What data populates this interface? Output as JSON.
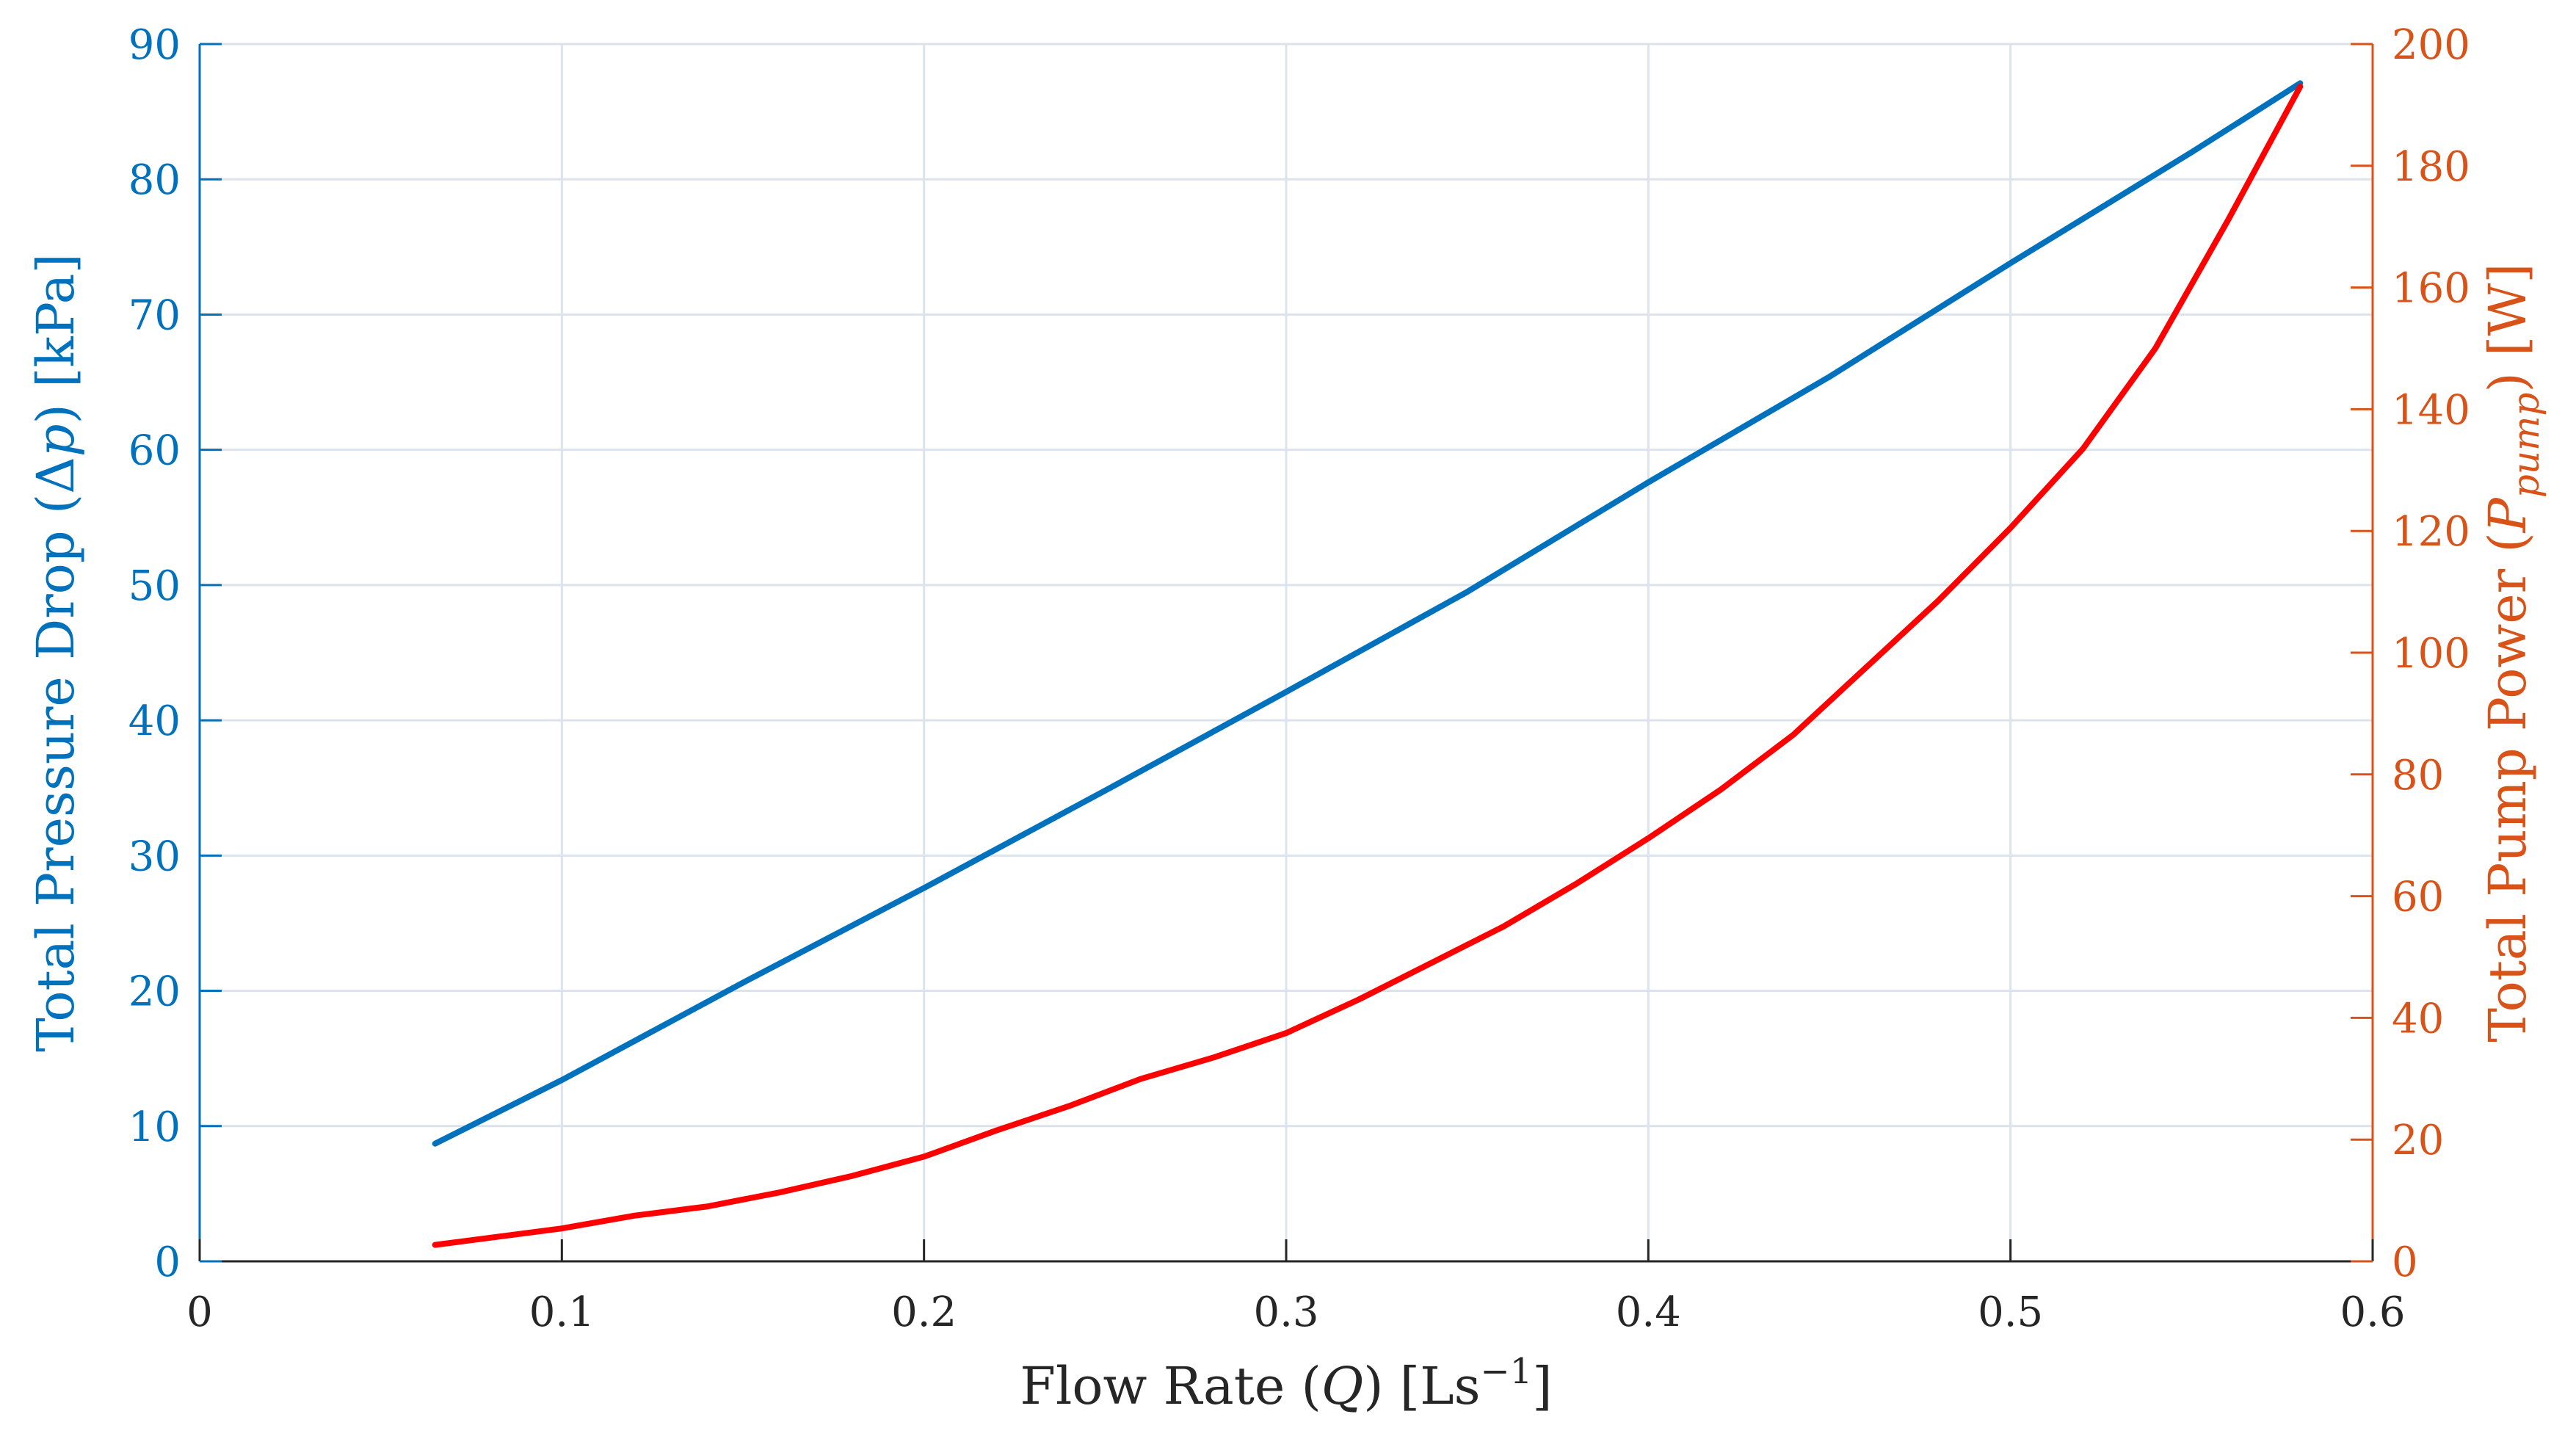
{
  "chart_data": {
    "type": "line",
    "title": "",
    "colors": {
      "left_axis": "#0072BD",
      "right_axis": "#D95319",
      "pressure_line": "#0072BD",
      "power_line": "#FF0000",
      "grid": "#DCE3EC",
      "x_axis": "#262626"
    },
    "x_axis": {
      "label_parts": [
        "Flow Rate (",
        "Q",
        ") [Ls",
        "−1",
        "]"
      ],
      "range": [
        0,
        0.6
      ],
      "ticks": [
        0,
        0.1,
        0.2,
        0.3,
        0.4,
        0.5,
        0.6
      ],
      "tick_labels": [
        "0",
        "0.1",
        "0.2",
        "0.3",
        "0.4",
        "0.5",
        "0.6"
      ]
    },
    "y_left": {
      "label_parts": [
        "Total Pressure Drop (Δ",
        "p",
        ") [kPa]"
      ],
      "range": [
        0,
        90
      ],
      "ticks": [
        0,
        10,
        20,
        30,
        40,
        50,
        60,
        70,
        80,
        90
      ],
      "tick_labels": [
        "0",
        "10",
        "20",
        "30",
        "40",
        "50",
        "60",
        "70",
        "80",
        "90"
      ]
    },
    "y_right": {
      "label_parts": [
        "Total Pump Power (",
        "P",
        "pump",
        ") [W]"
      ],
      "range": [
        0,
        200
      ],
      "ticks": [
        0,
        20,
        40,
        60,
        80,
        100,
        120,
        140,
        160,
        180,
        200
      ],
      "tick_labels": [
        "0",
        "20",
        "40",
        "60",
        "80",
        "100",
        "120",
        "140",
        "160",
        "180",
        "200"
      ]
    },
    "grid": true,
    "series": [
      {
        "axis": "left",
        "x": [
          0.065,
          0.1,
          0.15,
          0.2,
          0.25,
          0.3,
          0.35,
          0.4,
          0.45,
          0.5,
          0.55,
          0.58
        ],
        "values": [
          8.7,
          13.4,
          20.6,
          27.6,
          34.8,
          42.1,
          49.5,
          57.6,
          65.4,
          73.8,
          82.0,
          87.1
        ]
      },
      {
        "axis": "right",
        "x": [
          0.065,
          0.1,
          0.12,
          0.14,
          0.16,
          0.18,
          0.2,
          0.22,
          0.24,
          0.26,
          0.28,
          0.3,
          0.32,
          0.34,
          0.36,
          0.38,
          0.4,
          0.42,
          0.44,
          0.46,
          0.48,
          0.5,
          0.52,
          0.54,
          0.56,
          0.58
        ],
        "values": [
          2.7,
          5.4,
          7.5,
          9.0,
          11.3,
          14.0,
          17.2,
          21.5,
          25.5,
          30.0,
          33.5,
          37.5,
          43.0,
          49.0,
          55.0,
          62.0,
          69.5,
          77.5,
          86.5,
          97.5,
          108.5,
          120.5,
          133.5,
          150.0,
          171.0,
          193.0
        ]
      }
    ]
  }
}
